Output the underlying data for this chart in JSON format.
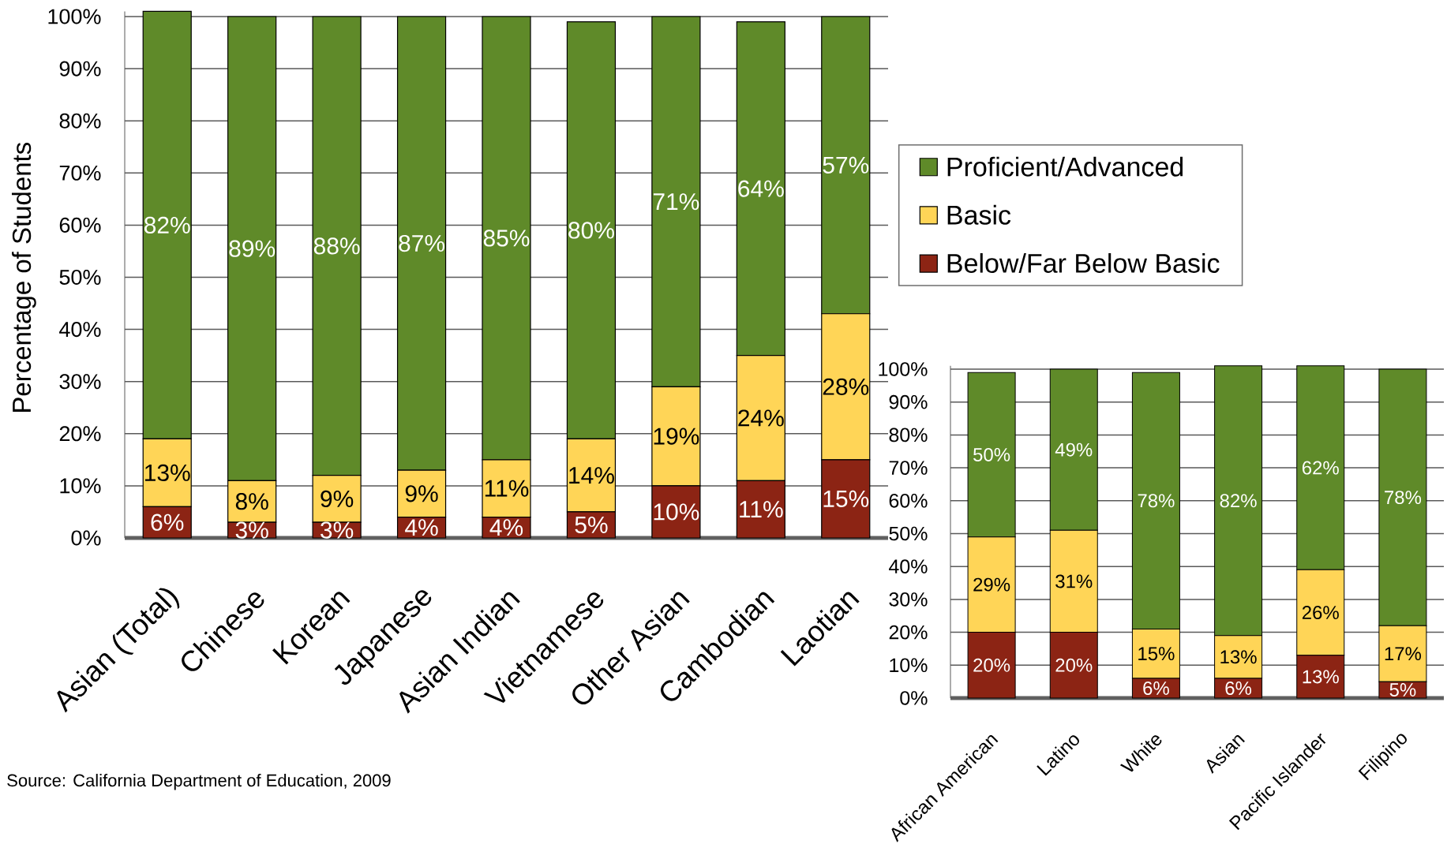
{
  "chart_data": [
    {
      "type": "bar",
      "stacked": true,
      "ylabel": "Percentage of Students",
      "legend": "right",
      "grid": "y",
      "categories": [
        "Asian (Total)",
        "Chinese",
        "Korean",
        "Japanese",
        "Asian Indian",
        "Vietnamese",
        "Other Asian",
        "Cambodian",
        "Laotian"
      ],
      "series": [
        {
          "name": "Below/Far Below Basic",
          "color": "#8c2414",
          "values": [
            6,
            3,
            3,
            4,
            4,
            5,
            10,
            11,
            15
          ],
          "value_labels": [
            "6%",
            "3%",
            "3%",
            "4%",
            "4%",
            "5%",
            "10%",
            "11%",
            "15%"
          ]
        },
        {
          "name": "Basic",
          "color": "#ffd557",
          "values": [
            13,
            8,
            9,
            9,
            11,
            14,
            19,
            24,
            28
          ],
          "value_labels": [
            "13%",
            "8%",
            "9%",
            "9%",
            "11%",
            "14%",
            "19%",
            "24%",
            "28%"
          ]
        },
        {
          "name": "Proficient/Advanced",
          "color": "#5f8a29",
          "values": [
            82,
            89,
            88,
            87,
            85,
            80,
            71,
            64,
            57
          ],
          "value_labels": [
            "82%",
            "89%",
            "88%",
            "87%",
            "85%",
            "80%",
            "71%",
            "64%",
            "57%"
          ]
        }
      ],
      "ylim": [
        0,
        101
      ],
      "yticks": [
        {
          "value": 0,
          "label": "0%"
        },
        {
          "value": 10,
          "label": "10%"
        },
        {
          "value": 20,
          "label": "20%"
        },
        {
          "value": 30,
          "label": "30%"
        },
        {
          "value": 40,
          "label": "40%"
        },
        {
          "value": 50,
          "label": "50%"
        },
        {
          "value": 60,
          "label": "60%"
        },
        {
          "value": 70,
          "label": "70%"
        },
        {
          "value": 80,
          "label": "80%"
        },
        {
          "value": 90,
          "label": "90%"
        },
        {
          "value": 100,
          "label": "100%"
        }
      ],
      "annotations": [
        "Source: California Department of Education, 2009"
      ]
    },
    {
      "type": "bar",
      "stacked": true,
      "grid": "y",
      "categories": [
        "African American",
        "Latino",
        "White",
        "Asian",
        "Pacific Islander",
        "Filipino"
      ],
      "series": [
        {
          "color": "#8c2414",
          "values": [
            20,
            20,
            6,
            6,
            13,
            5
          ],
          "value_labels": [
            "20%",
            "20%",
            "6%",
            "6%",
            "13%",
            "5%"
          ]
        },
        {
          "color": "#ffd557",
          "values": [
            29,
            31,
            15,
            13,
            26,
            17
          ],
          "value_labels": [
            "29%",
            "31%",
            "15%",
            "13%",
            "26%",
            "17%"
          ]
        },
        {
          "color": "#5f8a29",
          "values": [
            50,
            49,
            78,
            82,
            62,
            78
          ],
          "value_labels": [
            "50%",
            "49%",
            "78%",
            "82%",
            "62%",
            "78%"
          ]
        }
      ],
      "ylim": [
        0,
        101
      ],
      "yticks": [
        {
          "value": 0,
          "label": "0%"
        },
        {
          "value": 10,
          "label": "10%"
        },
        {
          "value": 20,
          "label": "20%"
        },
        {
          "value": 30,
          "label": "30%"
        },
        {
          "value": 40,
          "label": "40%"
        },
        {
          "value": 50,
          "label": "50%"
        },
        {
          "value": 60,
          "label": "60%"
        },
        {
          "value": 70,
          "label": "70%"
        },
        {
          "value": 80,
          "label": "80%"
        },
        {
          "value": 90,
          "label": "90%"
        },
        {
          "value": 100,
          "label": "100%"
        }
      ]
    }
  ]
}
